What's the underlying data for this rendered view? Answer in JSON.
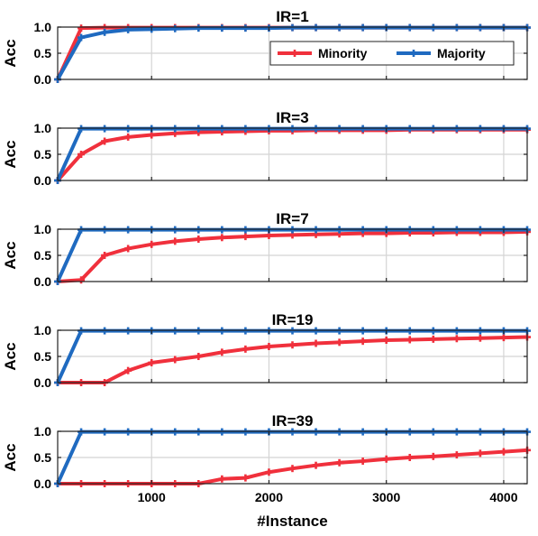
{
  "chart_data": {
    "type": "line",
    "xlabel": "#Instance",
    "ylabel": "Acc",
    "xlim": [
      200,
      4200
    ],
    "ylim": [
      0,
      1
    ],
    "xticks": [
      1000,
      2000,
      3000,
      4000
    ],
    "yticks": [
      0.0,
      0.5,
      1.0
    ],
    "ytick_labels": [
      "0.0",
      "0.5",
      "1.0"
    ],
    "grid": true,
    "legend": {
      "placement": "top-right",
      "shown_in_panel": "IR=1",
      "entries": [
        "Minority",
        "Majority"
      ]
    },
    "colors": {
      "Minority": "#f0303c",
      "Majority": "#1f6ac0"
    },
    "x": [
      200,
      400,
      600,
      800,
      1000,
      1200,
      1400,
      1600,
      1800,
      2000,
      2200,
      2400,
      2600,
      2800,
      3000,
      3200,
      3400,
      3600,
      3800,
      4000,
      4200
    ],
    "panels": [
      {
        "title": "IR=1",
        "series": [
          {
            "name": "Minority",
            "values": [
              0.0,
              0.98,
              0.99,
              0.99,
              0.99,
              0.99,
              0.99,
              0.99,
              0.99,
              0.99,
              0.99,
              0.99,
              0.99,
              0.99,
              0.99,
              0.99,
              0.99,
              0.99,
              0.99,
              0.99,
              0.99
            ]
          },
          {
            "name": "Majority",
            "values": [
              0.0,
              0.8,
              0.9,
              0.95,
              0.96,
              0.97,
              0.98,
              0.98,
              0.98,
              0.98,
              0.99,
              0.99,
              0.99,
              0.99,
              0.99,
              0.99,
              0.99,
              0.99,
              0.99,
              0.99,
              0.99
            ]
          }
        ]
      },
      {
        "title": "IR=3",
        "series": [
          {
            "name": "Minority",
            "values": [
              0.0,
              0.5,
              0.75,
              0.83,
              0.87,
              0.9,
              0.92,
              0.93,
              0.94,
              0.95,
              0.95,
              0.96,
              0.96,
              0.96,
              0.96,
              0.97,
              0.97,
              0.97,
              0.97,
              0.97,
              0.97
            ]
          },
          {
            "name": "Majority",
            "values": [
              0.0,
              0.99,
              0.99,
              0.99,
              0.99,
              0.99,
              0.99,
              0.99,
              0.99,
              0.99,
              0.99,
              0.99,
              0.99,
              0.99,
              0.99,
              0.99,
              0.99,
              0.99,
              0.99,
              0.99,
              0.99
            ]
          }
        ]
      },
      {
        "title": "IR=7",
        "series": [
          {
            "name": "Minority",
            "values": [
              0.0,
              0.03,
              0.5,
              0.63,
              0.71,
              0.77,
              0.81,
              0.84,
              0.86,
              0.88,
              0.89,
              0.9,
              0.91,
              0.92,
              0.92,
              0.93,
              0.93,
              0.94,
              0.94,
              0.94,
              0.95
            ]
          },
          {
            "name": "Majority",
            "values": [
              0.0,
              0.99,
              0.99,
              0.99,
              0.99,
              0.99,
              0.99,
              0.99,
              0.99,
              0.99,
              0.99,
              0.99,
              0.99,
              0.99,
              0.99,
              0.99,
              0.99,
              0.99,
              0.99,
              0.99,
              0.99
            ]
          }
        ]
      },
      {
        "title": "IR=19",
        "series": [
          {
            "name": "Minority",
            "values": [
              0.0,
              0.0,
              0.0,
              0.23,
              0.38,
              0.44,
              0.5,
              0.58,
              0.64,
              0.69,
              0.72,
              0.75,
              0.77,
              0.79,
              0.81,
              0.82,
              0.83,
              0.84,
              0.85,
              0.86,
              0.87
            ]
          },
          {
            "name": "Majority",
            "values": [
              0.0,
              0.99,
              0.99,
              0.99,
              0.99,
              0.99,
              0.99,
              0.99,
              0.99,
              0.99,
              0.99,
              0.99,
              0.99,
              0.99,
              0.99,
              0.99,
              0.99,
              0.99,
              0.99,
              0.99,
              0.99
            ]
          }
        ]
      },
      {
        "title": "IR=39",
        "series": [
          {
            "name": "Minority",
            "values": [
              0.0,
              0.0,
              0.0,
              0.0,
              0.0,
              0.0,
              0.0,
              0.09,
              0.11,
              0.22,
              0.29,
              0.35,
              0.4,
              0.43,
              0.47,
              0.5,
              0.52,
              0.55,
              0.58,
              0.61,
              0.64
            ]
          },
          {
            "name": "Majority",
            "values": [
              0.0,
              0.99,
              0.99,
              0.99,
              0.99,
              0.99,
              0.99,
              0.99,
              0.99,
              0.99,
              0.99,
              0.99,
              0.99,
              0.99,
              0.99,
              0.99,
              0.99,
              0.99,
              0.99,
              0.99,
              0.99
            ]
          }
        ]
      }
    ]
  }
}
